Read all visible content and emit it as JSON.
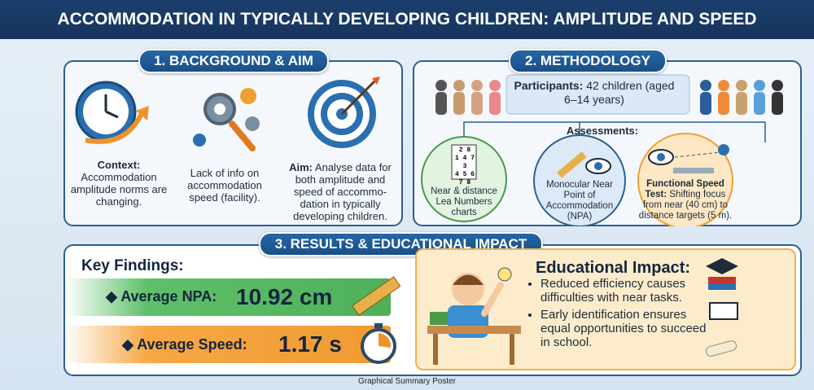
{
  "header": {
    "title": "ACCOMMODATION IN TYPICALLY DEVELOPING CHILDREN: AMPLITUDE AND SPEED"
  },
  "background": {
    "heading": "1. BACKGROUND & AIM",
    "context": {
      "label": "Context:",
      "text": "Accommodation amplitude norms are changing."
    },
    "gap": {
      "text": "Lack of info on accommodation speed (facility)."
    },
    "aim": {
      "label": "Aim:",
      "text": "Analyse data for both amplitude and speed of accommo-dation in typically developing children."
    }
  },
  "methodology": {
    "heading": "2. METHODOLOGY",
    "participants": {
      "label": "Participants:",
      "text": "42 children (aged 6–14 years)"
    },
    "assessments": {
      "label": "Assessments:",
      "chart_rows": [
        "2 8",
        "1 4 7 3",
        "4 5 6",
        "7 8"
      ],
      "items": [
        "Near & distance Lea Numbers charts",
        "Monocular Near Point of Accommodation (NPA)"
      ],
      "speed_test": {
        "label": "Functional Speed Test:",
        "text": "Shifting focus from near (40 cm) to distance targets (5 m)."
      }
    }
  },
  "results": {
    "heading": "3. RESULTS & EDUCATIONAL IMPACT",
    "key_findings": "Key Findings:",
    "npa": {
      "label": "Average NPA:",
      "value": "10.92 cm"
    },
    "speed": {
      "label": "Average Speed:",
      "value": "1.17 s"
    },
    "impact": {
      "title": "Educational Impact:",
      "bullets": [
        "Reduced efficiency causes difficulties with near tasks.",
        "Early identification ensures equal opportunities to succeed in school."
      ]
    }
  },
  "footer": {
    "caption": "Graphical Summary Poster"
  }
}
